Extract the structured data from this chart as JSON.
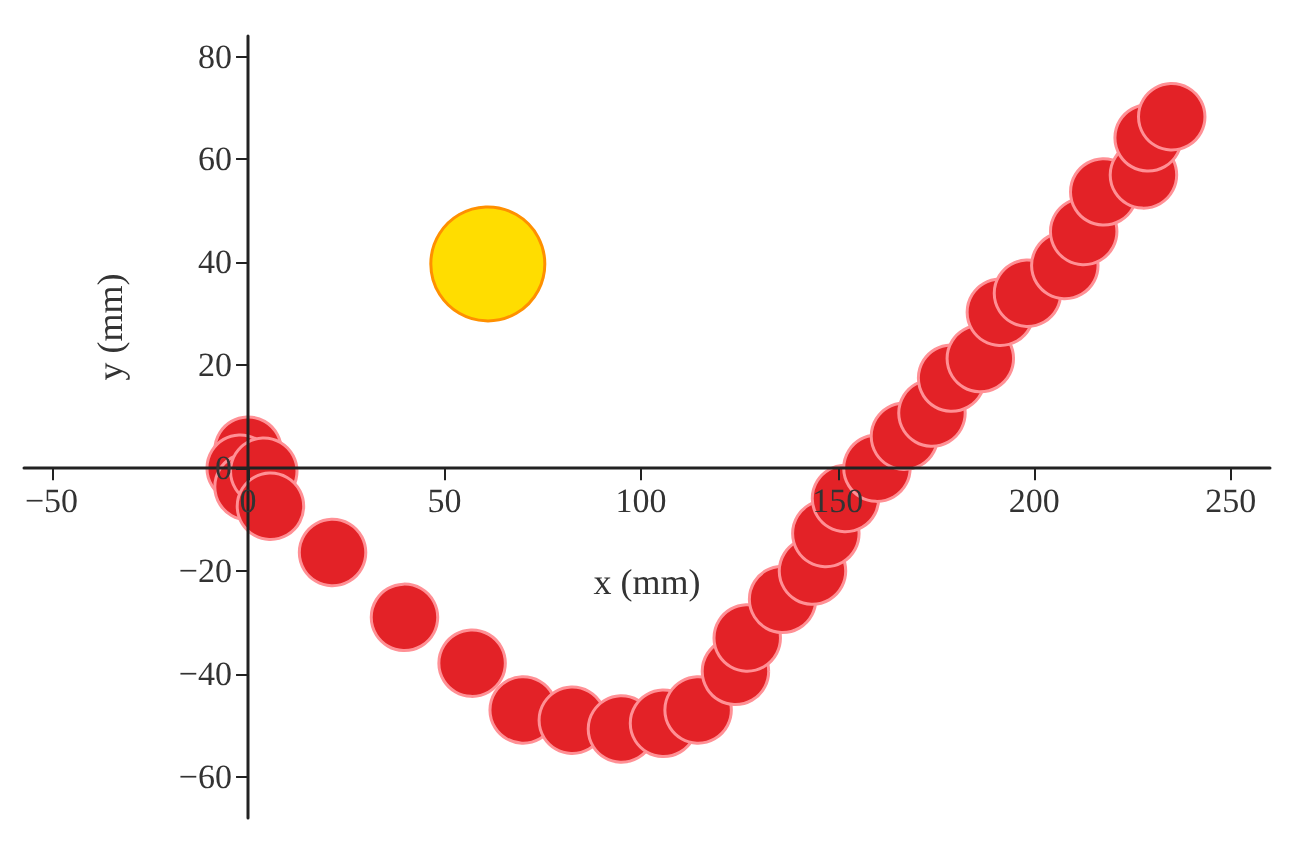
{
  "chart_data": {
    "type": "bubble",
    "xlabel": "x (mm)",
    "ylabel": "y (mm)",
    "xlim": [
      -57,
      260
    ],
    "ylim": [
      -68,
      84
    ],
    "xticks": [
      -50,
      0,
      50,
      100,
      150,
      200,
      250
    ],
    "yticks": [
      -60,
      -40,
      -20,
      0,
      20,
      40,
      60,
      80
    ],
    "grid": false,
    "marker": "circle",
    "series": [
      {
        "color": "#e32227",
        "x": [
          0,
          -2,
          0,
          4,
          5.7,
          21.5,
          39.8,
          57,
          70,
          82.5,
          95,
          105.7,
          114.5,
          124,
          127,
          136,
          143.6,
          147,
          152,
          160,
          167,
          174,
          179,
          186.3,
          191.4,
          198.3,
          207.8,
          212.6,
          217.7,
          227.8,
          229,
          235
        ],
        "values": [
          3.5,
          0,
          -3.6,
          -0.6,
          -7.4,
          -16.4,
          -29,
          -37.9,
          -47,
          -49,
          -50.7,
          -49.6,
          -47,
          -39.5,
          -33,
          -25.5,
          -20,
          -12.7,
          -5.9,
          0,
          6.2,
          10.7,
          17.5,
          21.3,
          30.3,
          34,
          39.4,
          46,
          53.7,
          57,
          64.2,
          68.3
        ],
        "sizes": [
          0.34,
          0.34,
          0.34,
          0.34,
          0.34,
          0.34,
          0.34,
          0.34,
          0.34,
          0.34,
          0.34,
          0.34,
          0.34,
          0.34,
          0.34,
          0.34,
          0.34,
          0.34,
          0.34,
          0.34,
          0.34,
          0.34,
          0.34,
          0.34,
          0.34,
          0.34,
          0.34,
          0.34,
          0.34,
          0.34,
          0.34,
          0.34
        ]
      },
      {
        "color": "#ffdd00",
        "x": [
          61
        ],
        "values": [
          39.7
        ],
        "sizes": [
          1
        ]
      }
    ]
  }
}
